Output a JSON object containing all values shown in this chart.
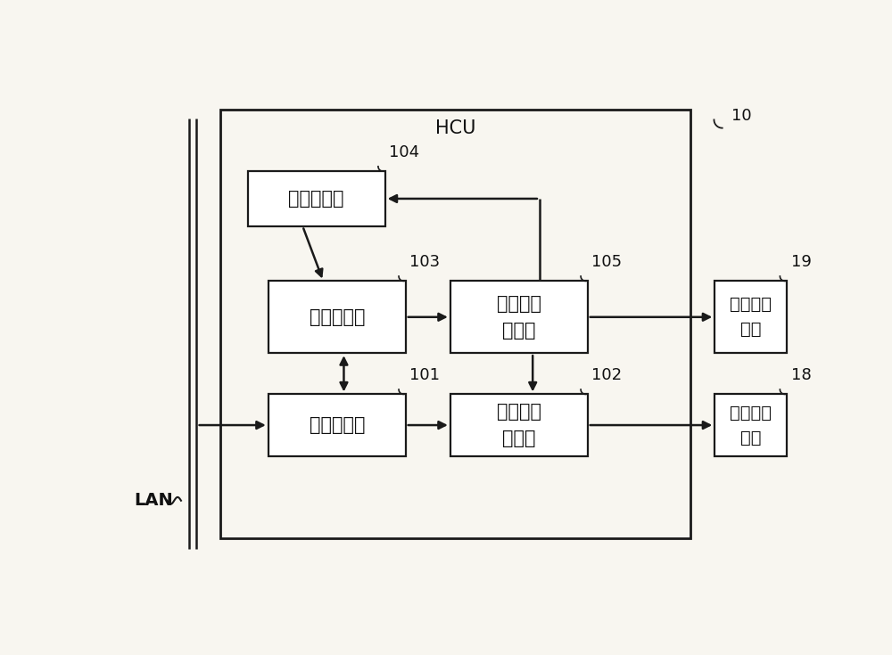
{
  "bg_color": "#f8f6f0",
  "box_color": "#ffffff",
  "box_edge_color": "#1a1a1a",
  "line_color": "#1a1a1a",
  "text_color": "#111111",
  "hcu_label": "HCU",
  "lan_label": "LAN",
  "label_10": "10",
  "label_104": "104",
  "label_103": "103",
  "label_105": "105",
  "label_101": "101",
  "label_102": "102",
  "label_19": "19",
  "label_18": "18",
  "box_104_text": "点亮检测部",
  "box_103_text": "状态确定部",
  "box_105_text": "车外报告\n控制部",
  "box_101_text": "信息获取部",
  "box_102_text": "车内提示\n控制部",
  "box_19_text": "车外报告\n装置",
  "box_18_text": "车内提示\n装置",
  "font_size_box": 15,
  "font_size_label": 13,
  "font_size_hcu": 15,
  "font_size_lan": 14
}
